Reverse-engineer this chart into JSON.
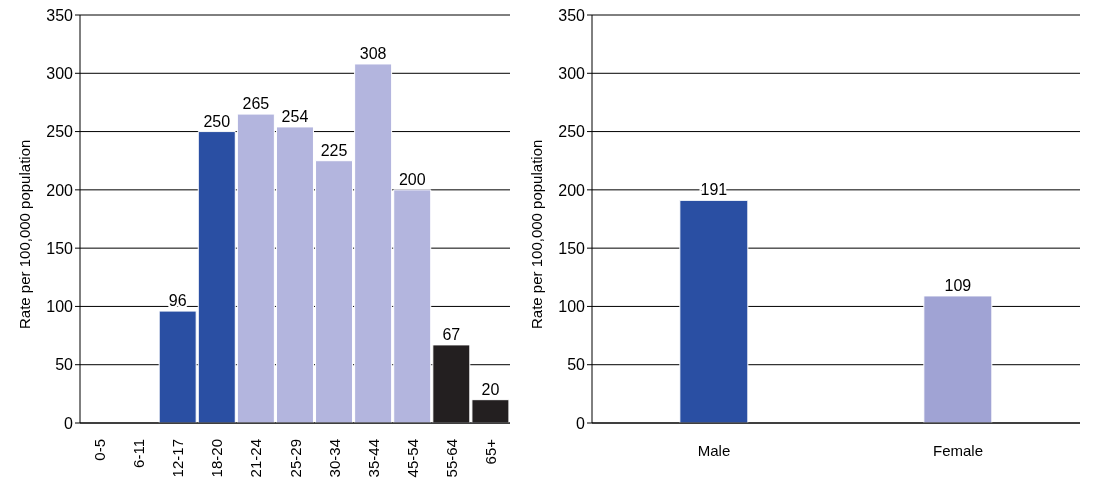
{
  "chart_data": [
    {
      "type": "bar",
      "ylabel": "Rate per 100,000 population",
      "categories": [
        "0-5",
        "6-11",
        "12-17",
        "18-20",
        "21-24",
        "25-29",
        "30-34",
        "35-44",
        "45-54",
        "55-64",
        "65+"
      ],
      "values": [
        null,
        null,
        96,
        250,
        265,
        254,
        225,
        308,
        200,
        67,
        20
      ],
      "colors": [
        "#2a4fa3",
        "#2a4fa3",
        "#2a4fa3",
        "#2a4fa3",
        "#b3b5de",
        "#b3b5de",
        "#b3b5de",
        "#b3b5de",
        "#b3b5de",
        "#231f20",
        "#231f20"
      ],
      "ylim": [
        0,
        350
      ],
      "yticks": [
        0,
        50,
        100,
        150,
        200,
        250,
        300,
        350
      ],
      "grid": "y",
      "data_labels": true
    },
    {
      "type": "bar",
      "ylabel": "Rate per 100,000 population",
      "categories": [
        "Male",
        "Female"
      ],
      "values": [
        191,
        109
      ],
      "colors": [
        "#2a4fa3",
        "#a0a3d4"
      ],
      "ylim": [
        0,
        350
      ],
      "yticks": [
        0,
        50,
        100,
        150,
        200,
        250,
        300,
        350
      ],
      "grid": "y",
      "data_labels": true
    }
  ]
}
